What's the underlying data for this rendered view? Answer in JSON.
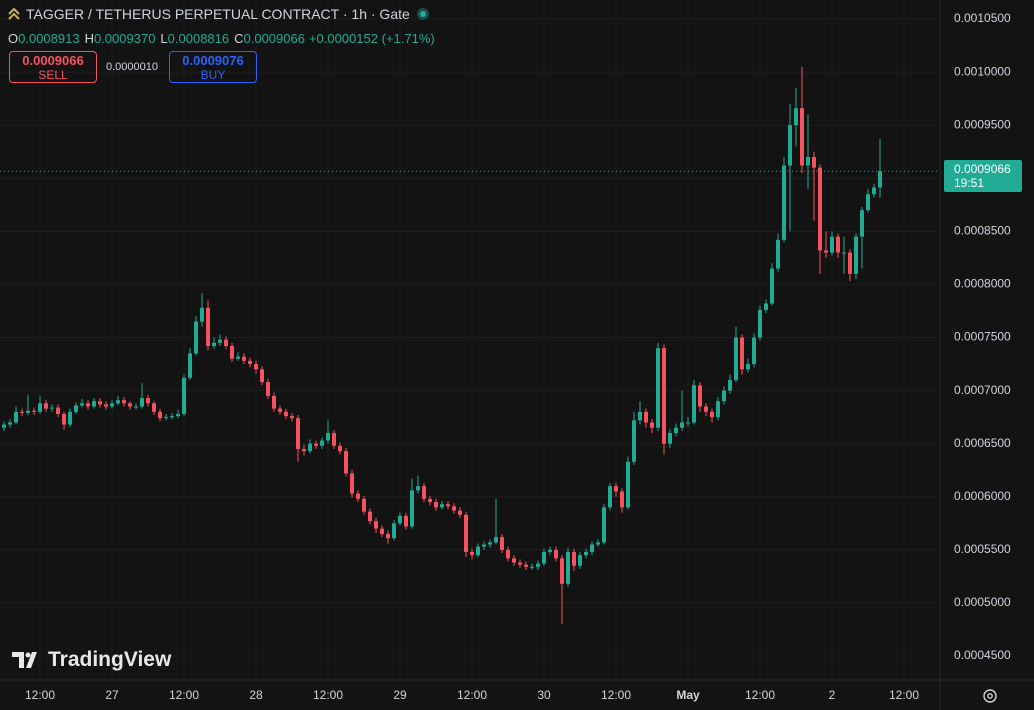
{
  "chart_data": {
    "type": "candlestick",
    "title": "TAGGER / TETHERUS PERPETUAL CONTRACT · 1h · Gate",
    "ohlc_legend": [
      {
        "key": "O",
        "value": "0.0008913"
      },
      {
        "key": "H",
        "value": "0.0009370"
      },
      {
        "key": "L",
        "value": "0.0008816"
      },
      {
        "key": "C",
        "value": "0.0009066"
      }
    ],
    "change": "+0.0000152 (+1.71%)",
    "sell": {
      "price": "0.0009066",
      "label": "SELL"
    },
    "spread": "0.0000010",
    "buy": {
      "price": "0.0009076",
      "label": "BUY"
    },
    "last_price_label": "0.0009066",
    "countdown": "19:51",
    "watermark": "TradingView",
    "up_color": "#22ab94",
    "down_color": "#f7525f",
    "grid": true,
    "open": [
      0.000665,
      0.000668,
      0.00067,
      0.00068,
      0.000679,
      0.000681,
      0.00068,
      0.000688,
      0.000683,
      0.000684,
      0.000678,
      0.000668,
      0.00068,
      0.000686,
      0.000688,
      0.000685,
      0.00069,
      0.000687,
      0.000685,
      0.000688,
      0.000691,
      0.000688,
      0.000685,
      0.000685,
      0.000693,
      0.000688,
      0.00068,
      0.000674,
      0.000675,
      0.000676,
      0.000678,
      0.000712,
      0.000735,
      0.000765,
      0.000778,
      0.000742,
      0.000745,
      0.000748,
      0.000742,
      0.00073,
      0.000732,
      0.000728,
      0.000725,
      0.00072,
      0.000708,
      0.000695,
      0.000683,
      0.00068,
      0.000676,
      0.000674,
      0.000645,
      0.000643,
      0.00065,
      0.000648,
      0.000653,
      0.00066,
      0.000648,
      0.000643,
      0.000622,
      0.000603,
      0.000598,
      0.000586,
      0.000577,
      0.00057,
      0.000565,
      0.000561,
      0.000575,
      0.000582,
      0.000572,
      0.000606,
      0.00061,
      0.000598,
      0.000595,
      0.00059,
      0.000593,
      0.000591,
      0.000587,
      0.000583,
      0.000548,
      0.000545,
      0.000553,
      0.000555,
      0.000557,
      0.000562,
      0.00055,
      0.000542,
      0.000538,
      0.000536,
      0.000534,
      0.000534,
      0.000537,
      0.000548,
      0.00055,
      0.000542,
      0.000518,
      0.000548,
      0.000535,
      0.000545,
      0.000548,
      0.000555,
      0.000557,
      0.00059,
      0.00061,
      0.000605,
      0.00059,
      0.000633,
      0.000672,
      0.00068,
      0.00067,
      0.000665,
      0.00074,
      0.00065,
      0.00066,
      0.000665,
      0.00067,
      0.00067,
      0.000705,
      0.000685,
      0.00068,
      0.000675,
      0.00069,
      0.0007,
      0.00071,
      0.00075,
      0.00072,
      0.000725,
      0.00075,
      0.000776,
      0.000782,
      0.000815,
      0.000842,
      0.000912,
      0.00095,
      0.000966,
      0.000912,
      0.00092,
      0.00091,
      0.000832,
      0.00083,
      0.000845,
      0.00083,
      0.00083,
      0.00081,
      0.000845,
      0.00087,
      0.000885,
      0.0008913
    ],
    "high": [
      0.000671,
      0.000673,
      0.000685,
      0.000683,
      0.000696,
      0.000684,
      0.000695,
      0.000691,
      0.000687,
      0.000687,
      0.00068,
      0.000683,
      0.000689,
      0.000692,
      0.000691,
      0.000693,
      0.000693,
      0.00069,
      0.000691,
      0.000695,
      0.000694,
      0.00069,
      0.000688,
      0.000707,
      0.000696,
      0.00069,
      0.000683,
      0.000678,
      0.000679,
      0.000682,
      0.000715,
      0.00074,
      0.00077,
      0.000792,
      0.000785,
      0.00075,
      0.000753,
      0.000751,
      0.000745,
      0.000736,
      0.000735,
      0.000731,
      0.000728,
      0.000723,
      0.000711,
      0.000698,
      0.000686,
      0.000683,
      0.000679,
      0.000677,
      0.000649,
      0.000654,
      0.000653,
      0.000656,
      0.000672,
      0.000663,
      0.000651,
      0.000646,
      0.000625,
      0.000606,
      0.000601,
      0.000589,
      0.00058,
      0.000573,
      0.000568,
      0.000578,
      0.000585,
      0.000585,
      0.000617,
      0.00062,
      0.000613,
      0.000601,
      0.000598,
      0.000596,
      0.000596,
      0.000594,
      0.00059,
      0.000586,
      0.000551,
      0.000556,
      0.000558,
      0.00056,
      0.000598,
      0.000565,
      0.000553,
      0.000545,
      0.000541,
      0.000539,
      0.000537,
      0.00054,
      0.000551,
      0.000553,
      0.000553,
      0.000545,
      0.000552,
      0.000551,
      0.000548,
      0.000551,
      0.000558,
      0.00056,
      0.000593,
      0.000613,
      0.000613,
      0.000608,
      0.000638,
      0.00068,
      0.00069,
      0.000683,
      0.000673,
      0.000745,
      0.000743,
      0.000664,
      0.000669,
      0.0007,
      0.000675,
      0.00071,
      0.000708,
      0.000688,
      0.000683,
      0.000694,
      0.000704,
      0.000715,
      0.00076,
      0.000753,
      0.00073,
      0.000754,
      0.00078,
      0.000786,
      0.00082,
      0.000848,
      0.00092,
      0.00097,
      0.000985,
      0.001005,
      0.00096,
      0.000925,
      0.000913,
      0.00085,
      0.00085,
      0.000848,
      0.000845,
      0.000833,
      0.000848,
      0.000873,
      0.00089,
      0.000895,
      0.000937
    ],
    "low": [
      0.000662,
      0.000665,
      0.000668,
      0.000676,
      0.000677,
      0.000677,
      0.000678,
      0.00068,
      0.00068,
      0.000675,
      0.000663,
      0.000666,
      0.000678,
      0.000684,
      0.000682,
      0.000683,
      0.000684,
      0.000682,
      0.000683,
      0.000686,
      0.000685,
      0.000682,
      0.000682,
      0.000683,
      0.000685,
      0.000677,
      0.000671,
      0.000672,
      0.000673,
      0.000674,
      0.000676,
      0.00071,
      0.000733,
      0.00076,
      0.000738,
      0.000739,
      0.000742,
      0.000739,
      0.000727,
      0.000728,
      0.000725,
      0.000722,
      0.000716,
      0.000705,
      0.000692,
      0.00068,
      0.000677,
      0.000673,
      0.000671,
      0.000633,
      0.000639,
      0.000641,
      0.000645,
      0.000645,
      0.00065,
      0.000645,
      0.00064,
      0.000619,
      0.000599,
      0.000595,
      0.000583,
      0.000574,
      0.000566,
      0.000562,
      0.000556,
      0.000559,
      0.000573,
      0.000569,
      0.00057,
      0.000603,
      0.000595,
      0.000592,
      0.000587,
      0.000588,
      0.000588,
      0.000584,
      0.00058,
      0.000543,
      0.000541,
      0.000543,
      0.00055,
      0.000552,
      0.000555,
      0.000547,
      0.000539,
      0.000535,
      0.000533,
      0.000531,
      0.000531,
      0.000531,
      0.000535,
      0.000545,
      0.000539,
      0.00048,
      0.000515,
      0.00053,
      0.000532,
      0.000542,
      0.000545,
      0.000553,
      0.000555,
      0.000587,
      0.0006,
      0.000585,
      0.000588,
      0.00063,
      0.000668,
      0.000665,
      0.00066,
      0.000662,
      0.00064,
      0.000646,
      0.000657,
      0.000662,
      0.000666,
      0.000668,
      0.00068,
      0.000676,
      0.00067,
      0.000672,
      0.000687,
      0.000697,
      0.000708,
      0.000715,
      0.000717,
      0.000722,
      0.000747,
      0.000773,
      0.00078,
      0.000812,
      0.00084,
      0.00085,
      0.00093,
      0.000905,
      0.00089,
      0.00086,
      0.00081,
      0.000825,
      0.000827,
      0.000825,
      0.00081,
      0.000803,
      0.000805,
      0.000815,
      0.000868,
      0.000882,
      0.0008816
    ],
    "close": [
      0.000668,
      0.00067,
      0.00068,
      0.000679,
      0.000681,
      0.00068,
      0.000688,
      0.000683,
      0.000684,
      0.000678,
      0.000668,
      0.00068,
      0.000686,
      0.000688,
      0.000685,
      0.00069,
      0.000687,
      0.000685,
      0.000688,
      0.000691,
      0.000688,
      0.000685,
      0.000685,
      0.000693,
      0.000688,
      0.00068,
      0.000674,
      0.000675,
      0.000676,
      0.000678,
      0.000712,
      0.000735,
      0.000765,
      0.000778,
      0.000742,
      0.000745,
      0.000748,
      0.000742,
      0.00073,
      0.000732,
      0.000728,
      0.000725,
      0.00072,
      0.000708,
      0.000695,
      0.000683,
      0.00068,
      0.000676,
      0.000674,
      0.000645,
      0.000643,
      0.00065,
      0.000648,
      0.000653,
      0.00066,
      0.000648,
      0.000643,
      0.000622,
      0.000603,
      0.000598,
      0.000586,
      0.000577,
      0.00057,
      0.000565,
      0.000561,
      0.000575,
      0.000582,
      0.000572,
      0.000606,
      0.00061,
      0.000598,
      0.000595,
      0.00059,
      0.000593,
      0.000591,
      0.000587,
      0.000583,
      0.000548,
      0.000545,
      0.000553,
      0.000555,
      0.000557,
      0.000562,
      0.00055,
      0.000542,
      0.000538,
      0.000536,
      0.000534,
      0.000534,
      0.000537,
      0.000548,
      0.00055,
      0.000542,
      0.000518,
      0.000548,
      0.000535,
      0.000545,
      0.000548,
      0.000555,
      0.000557,
      0.00059,
      0.00061,
      0.000605,
      0.00059,
      0.000633,
      0.000672,
      0.00068,
      0.00067,
      0.000665,
      0.00074,
      0.00065,
      0.00066,
      0.000665,
      0.00067,
      0.00067,
      0.000705,
      0.000685,
      0.00068,
      0.000675,
      0.00069,
      0.0007,
      0.00071,
      0.00075,
      0.00072,
      0.000725,
      0.00075,
      0.000776,
      0.000782,
      0.000815,
      0.000842,
      0.000912,
      0.00095,
      0.000966,
      0.000912,
      0.00092,
      0.00091,
      0.000832,
      0.00083,
      0.000845,
      0.00083,
      0.00083,
      0.00081,
      0.000845,
      0.00087,
      0.000885,
      0.0008913,
      0.0009066
    ],
    "xlim": [
      -0.67,
      156
    ],
    "xticks": [
      {
        "value": 6,
        "label": "12:00"
      },
      {
        "value": 18,
        "label": "27"
      },
      {
        "value": 30,
        "label": "12:00"
      },
      {
        "value": 42,
        "label": "28"
      },
      {
        "value": 54,
        "label": "12:00"
      },
      {
        "value": 66,
        "label": "29"
      },
      {
        "value": 78,
        "label": "12:00"
      },
      {
        "value": 90,
        "label": "30"
      },
      {
        "value": 102,
        "label": "12:00"
      },
      {
        "value": 114,
        "label": "May"
      },
      {
        "value": 126,
        "label": "12:00"
      },
      {
        "value": 138,
        "label": "2"
      },
      {
        "value": 150,
        "label": "12:00"
      }
    ],
    "ylim": [
      0.0004274,
      0.0010679
    ],
    "yticks": [
      {
        "value": 0.00045,
        "label": "0.0004500"
      },
      {
        "value": 0.0005,
        "label": "0.0005000"
      },
      {
        "value": 0.00055,
        "label": "0.0005500"
      },
      {
        "value": 0.0006,
        "label": "0.0006000"
      },
      {
        "value": 0.00065,
        "label": "0.0006500"
      },
      {
        "value": 0.0007,
        "label": "0.0007000"
      },
      {
        "value": 0.00075,
        "label": "0.0007500"
      },
      {
        "value": 0.0008,
        "label": "0.0008000"
      },
      {
        "value": 0.00085,
        "label": "0.0008500"
      },
      {
        "value": 0.0009,
        "label": "0.0009000"
      },
      {
        "value": 0.00095,
        "label": "0.0009500"
      },
      {
        "value": 0.001,
        "label": "0.0010000"
      },
      {
        "value": 0.00105,
        "label": "0.0010500"
      }
    ]
  }
}
